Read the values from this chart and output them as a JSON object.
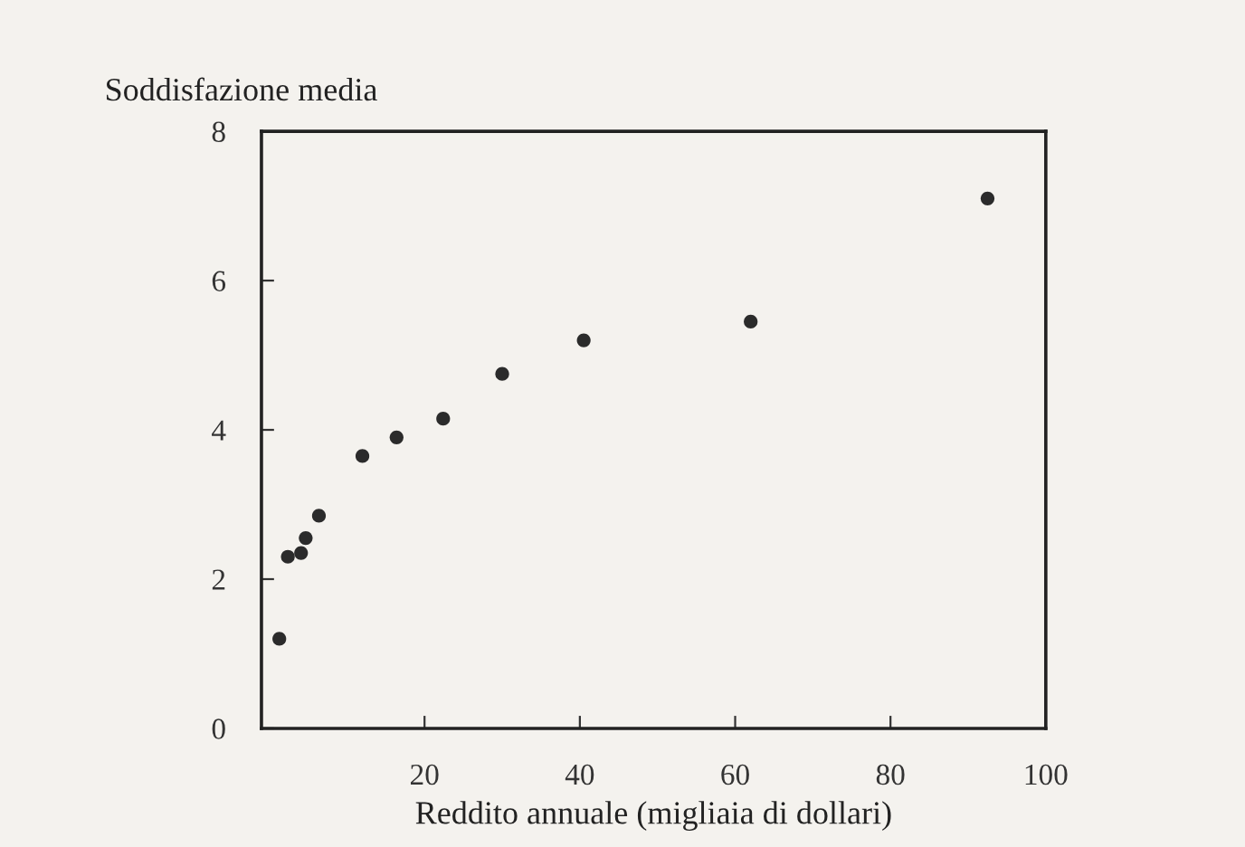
{
  "chart_data": {
    "type": "scatter",
    "ylabel": "Soddisfazione media",
    "xlabel": "Reddito annuale (migliaia di dollari)",
    "x": [
      1.3,
      2.4,
      4.1,
      4.7,
      6.4,
      12,
      16.4,
      22.4,
      30,
      40.5,
      62,
      92.5
    ],
    "series": [
      {
        "color": "#2b2b2b",
        "values": [
          1.2,
          2.3,
          2.35,
          2.55,
          2.85,
          3.65,
          3.9,
          4.15,
          4.75,
          5.2,
          5.45,
          7.1
        ]
      }
    ],
    "xlim": [
      -1,
      100
    ],
    "xticks": [
      20,
      40,
      60,
      80,
      100
    ],
    "ylim": [
      0,
      8
    ],
    "yticks": [
      0,
      2,
      4,
      6,
      8
    ],
    "marker": "circle",
    "grid": false
  }
}
